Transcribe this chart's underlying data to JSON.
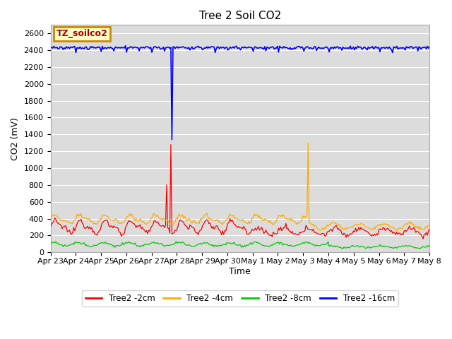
{
  "title": "Tree 2 Soil CO2",
  "ylabel": "CO2 (mV)",
  "xlabel": "Time",
  "annotation_text": "TZ_soilco2",
  "annotation_bg": "#ffffcc",
  "annotation_border": "#cc8800",
  "annotation_text_color": "#aa0000",
  "ylim": [
    0,
    2700
  ],
  "yticks": [
    0,
    200,
    400,
    600,
    800,
    1000,
    1200,
    1400,
    1600,
    1800,
    2000,
    2200,
    2400,
    2600
  ],
  "xtick_labels": [
    "Apr 23",
    "Apr 24",
    "Apr 25",
    "Apr 26",
    "Apr 27",
    "Apr 28",
    "Apr 29",
    "Apr 30",
    "May 1",
    "May 2",
    "May 3",
    "May 4",
    "May 5",
    "May 6",
    "May 7",
    "May 8"
  ],
  "colors": {
    "red": "#ff0000",
    "orange": "#ffaa00",
    "green": "#00cc00",
    "blue": "#0000ff"
  },
  "legend": [
    "Tree2 -2cm",
    "Tree2 -4cm",
    "Tree2 -8cm",
    "Tree2 -16cm"
  ],
  "plot_bg": "#dcdcdc",
  "grid_color": "#ffffff",
  "n_days": 15,
  "pts_per_day": 24,
  "red_base": 300,
  "red_amp": 60,
  "orange_base": 390,
  "orange_amp": 40,
  "green_base": 95,
  "green_amp": 20,
  "blue_base": 2430,
  "blue_noise": 8,
  "red_spike1_day": 4.6,
  "red_spike1_val": 800,
  "red_spike2_day": 4.75,
  "red_spike2_val": 1280,
  "orange_spike_day": 10.2,
  "orange_spike_val": 1300,
  "blue_spike_day": 4.8,
  "blue_spike_val": 1340
}
